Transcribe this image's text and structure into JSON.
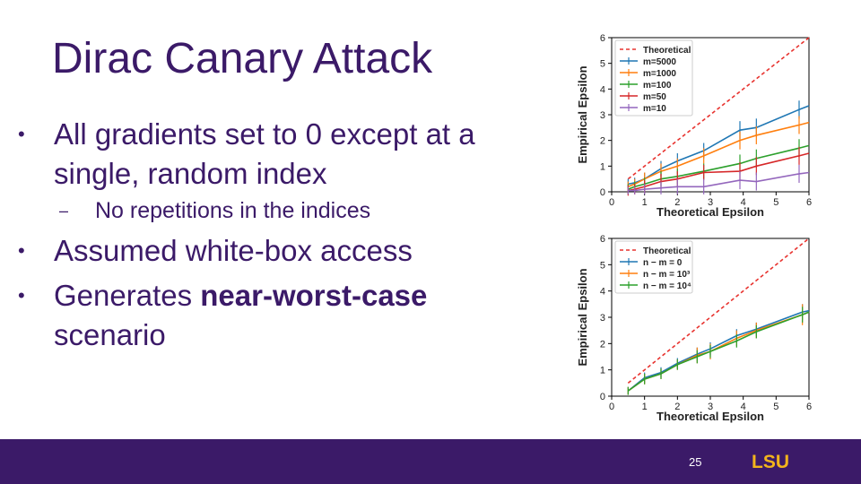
{
  "slide": {
    "title": "Dirac Canary Attack",
    "bullets": {
      "b1_line1": "All gradients set to 0 except at a",
      "b1_line2": "single, random index",
      "b1_sub": "No repetitions in the indices",
      "b2": "Assumed white-box access",
      "b3_pre": "Generates ",
      "b3_bold": "near-worst-case",
      "b3_post": "scenario"
    },
    "page_number": "25",
    "logo_text": "LSU"
  },
  "colors": {
    "brand_purple": "#3b1a68",
    "brand_gold": "#f2b41c"
  },
  "chart_data": [
    {
      "type": "line",
      "xlabel": "Theoretical Epsilon",
      "ylabel": "Empirical Epsilon",
      "xlim": [
        0,
        6
      ],
      "ylim": [
        0,
        6
      ],
      "xticks": [
        "0",
        "1",
        "2",
        "3",
        "4",
        "5",
        "6"
      ],
      "yticks": [
        "0",
        "1",
        "2",
        "3",
        "4",
        "5",
        "6"
      ],
      "legend_position": "top-left",
      "series": [
        {
          "name": "Theoretical",
          "color": "#e8332f",
          "dashed": true,
          "x": [
            0.5,
            6
          ],
          "y": [
            0.5,
            6
          ],
          "err": [
            0,
            0
          ]
        },
        {
          "name": "m=5000",
          "color": "#1f77b4",
          "x": [
            0.5,
            0.7,
            1.0,
            1.5,
            2.0,
            2.8,
            3.9,
            4.4,
            5.7,
            6.0
          ],
          "y": [
            0.3,
            0.35,
            0.5,
            0.9,
            1.2,
            1.6,
            2.4,
            2.5,
            3.2,
            3.35
          ],
          "err": [
            0.2,
            0.2,
            0.25,
            0.3,
            0.3,
            0.3,
            0.35,
            0.35,
            0.35,
            0
          ]
        },
        {
          "name": "m=1000",
          "color": "#ff7f0e",
          "x": [
            0.5,
            0.7,
            1.0,
            1.5,
            2.0,
            2.8,
            3.9,
            4.4,
            5.7,
            6.0
          ],
          "y": [
            0.2,
            0.3,
            0.5,
            0.8,
            1.0,
            1.4,
            2.0,
            2.2,
            2.6,
            2.7
          ],
          "err": [
            0.2,
            0.2,
            0.25,
            0.3,
            0.3,
            0.3,
            0.35,
            0.35,
            0.35,
            0
          ]
        },
        {
          "name": "m=100",
          "color": "#2ca02c",
          "x": [
            0.5,
            0.7,
            1.0,
            1.5,
            2.0,
            2.8,
            3.9,
            4.4,
            5.7,
            6.0
          ],
          "y": [
            0.1,
            0.2,
            0.3,
            0.5,
            0.6,
            0.8,
            1.1,
            1.3,
            1.7,
            1.8
          ],
          "err": [
            0.2,
            0.2,
            0.25,
            0.3,
            0.3,
            0.3,
            0.35,
            0.35,
            0.35,
            0
          ]
        },
        {
          "name": "m=50",
          "color": "#d62728",
          "x": [
            0.5,
            0.7,
            1.0,
            1.5,
            2.0,
            2.8,
            3.9,
            4.4,
            5.7,
            6.0
          ],
          "y": [
            0.05,
            0.1,
            0.2,
            0.4,
            0.5,
            0.75,
            0.8,
            1.0,
            1.4,
            1.5
          ],
          "err": [
            0.2,
            0.2,
            0.25,
            0.3,
            0.3,
            0.3,
            0.35,
            0.35,
            0.35,
            0
          ]
        },
        {
          "name": "m=10",
          "color": "#9467bd",
          "x": [
            0.5,
            0.7,
            1.0,
            1.5,
            2.0,
            2.8,
            3.9,
            4.4,
            5.7,
            6.0
          ],
          "y": [
            0.05,
            0.05,
            0.1,
            0.15,
            0.2,
            0.2,
            0.45,
            0.4,
            0.7,
            0.75
          ],
          "err": [
            0.15,
            0.15,
            0.2,
            0.25,
            0.3,
            0.3,
            0.35,
            0.35,
            0.35,
            0
          ]
        }
      ]
    },
    {
      "type": "line",
      "xlabel": "Theoretical Epsilon",
      "ylabel": "Empirical Epsilon",
      "xlim": [
        0,
        6
      ],
      "ylim": [
        0,
        6
      ],
      "xticks": [
        "0",
        "1",
        "2",
        "3",
        "4",
        "5",
        "6"
      ],
      "yticks": [
        "0",
        "1",
        "2",
        "3",
        "4",
        "5",
        "6"
      ],
      "legend_position": "top-left",
      "series": [
        {
          "name": "Theoretical",
          "color": "#e8332f",
          "dashed": true,
          "x": [
            0.5,
            6
          ],
          "y": [
            0.5,
            6
          ],
          "err": [
            0,
            0
          ]
        },
        {
          "name": "n − m = 0",
          "color": "#1f77b4",
          "x": [
            0.5,
            1.0,
            1.5,
            2.0,
            2.6,
            3.0,
            3.8,
            4.4,
            5.8,
            6.0
          ],
          "y": [
            0.2,
            0.7,
            0.9,
            1.25,
            1.6,
            1.8,
            2.3,
            2.55,
            3.2,
            3.25
          ],
          "err": [
            0.15,
            0.2,
            0.2,
            0.2,
            0.25,
            0.25,
            0.25,
            0.25,
            0.3,
            0
          ]
        },
        {
          "name": "n − m = 10³",
          "color": "#ff7f0e",
          "x": [
            0.5,
            1.0,
            1.5,
            2.0,
            2.6,
            3.0,
            3.8,
            4.4,
            5.8,
            6.0
          ],
          "y": [
            0.2,
            0.65,
            0.85,
            1.2,
            1.55,
            1.7,
            2.2,
            2.5,
            3.1,
            3.2
          ],
          "err": [
            0.15,
            0.2,
            0.2,
            0.2,
            0.3,
            0.3,
            0.3,
            0.3,
            0.4,
            0
          ]
        },
        {
          "name": "n − m = 10⁴",
          "color": "#2ca02c",
          "x": [
            0.5,
            1.0,
            1.5,
            2.0,
            2.6,
            3.0,
            3.8,
            4.4,
            5.8,
            6.0
          ],
          "y": [
            0.2,
            0.65,
            0.85,
            1.2,
            1.5,
            1.7,
            2.1,
            2.45,
            3.1,
            3.2
          ],
          "err": [
            0.15,
            0.2,
            0.2,
            0.2,
            0.25,
            0.25,
            0.25,
            0.25,
            0.3,
            0
          ]
        }
      ]
    }
  ]
}
